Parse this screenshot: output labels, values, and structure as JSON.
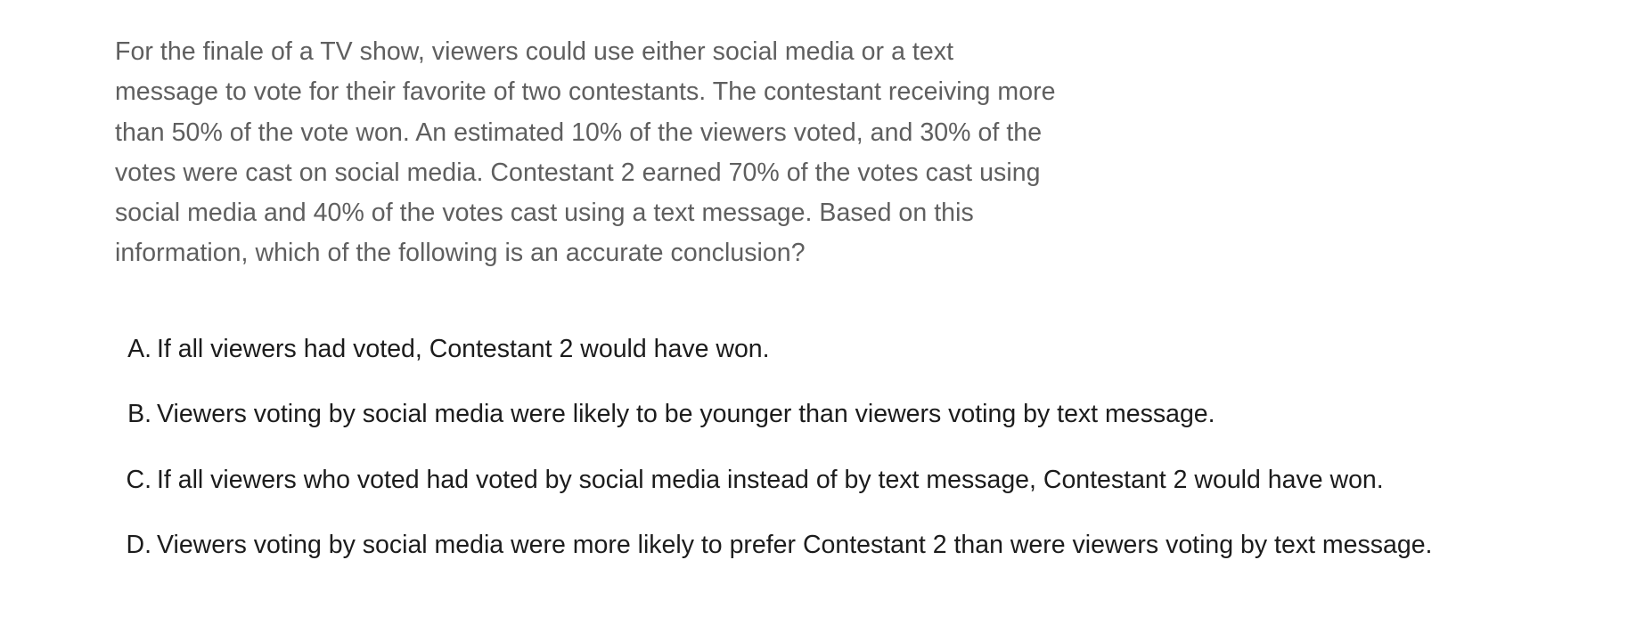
{
  "question": {
    "stem": "For the finale of a TV show, viewers could use either social media or a text message to vote for their favorite of two contestants. The contestant receiving more than 50% of the vote won. An estimated 10% of the viewers voted, and 30% of the votes were cast on social media. Contestant 2 earned 70% of the votes cast using social media and 40% of the votes cast using a text message. Based on this information, which of the following is an accurate conclusion?"
  },
  "choices": [
    {
      "letter": "A.",
      "text": "If all viewers had voted, Contestant 2 would have won."
    },
    {
      "letter": "B.",
      "text": "Viewers voting by social media were likely to be younger than viewers voting by text message."
    },
    {
      "letter": "C.",
      "text": "If all viewers who voted had voted by social media instead of by text message, Contestant 2 would have won."
    },
    {
      "letter": "D.",
      "text": "Viewers voting by social media were more likely to prefer Contestant 2 than were viewers voting by text message."
    }
  ]
}
